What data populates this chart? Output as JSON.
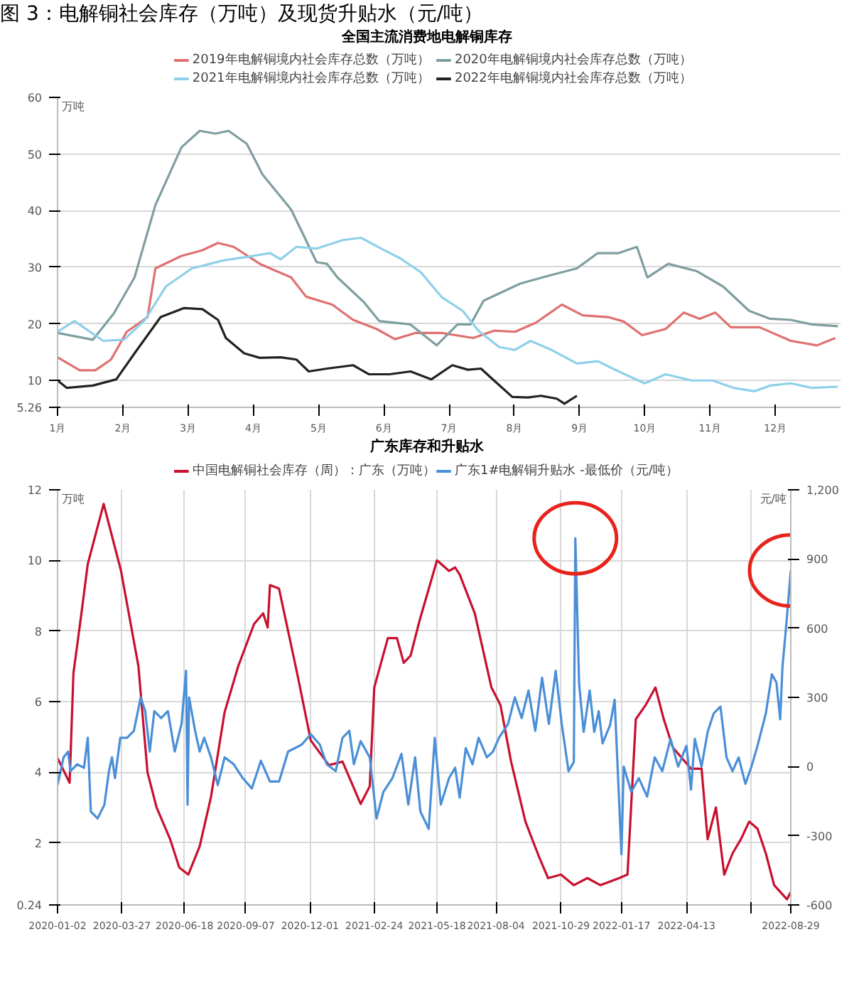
{
  "chart_data": [
    {
      "type": "line",
      "title": "图 3：电解铜社会库存（万吨）及现货升贴水（元/吨）",
      "subtitle": "全国主流消费地电解铜库存",
      "ylabel": "万吨",
      "legend": "top",
      "grid": "y",
      "line_style": "solid",
      "xlim": [
        1,
        13
      ],
      "xticks": [
        {
          "value": 1,
          "label": "1月"
        },
        {
          "value": 2,
          "label": "2月"
        },
        {
          "value": 3,
          "label": "3月"
        },
        {
          "value": 4,
          "label": "4月"
        },
        {
          "value": 5,
          "label": "5月"
        },
        {
          "value": 6,
          "label": "6月"
        },
        {
          "value": 7,
          "label": "7月"
        },
        {
          "value": 8,
          "label": "8月"
        },
        {
          "value": 9,
          "label": "9月"
        },
        {
          "value": 10,
          "label": "10月"
        },
        {
          "value": 11,
          "label": "11月"
        },
        {
          "value": 12,
          "label": "12月"
        }
      ],
      "ylim": [
        5.26,
        60
      ],
      "yticks": [
        5.26,
        10,
        20,
        30,
        40,
        50,
        60
      ],
      "series": [
        {
          "name": "2019年电解铜境内社会库存总数（万吨）",
          "color": "#e07070",
          "x": [
            1.0,
            1.34,
            1.58,
            1.82,
            2.06,
            2.38,
            2.5,
            2.9,
            3.22,
            3.46,
            3.7,
            4.1,
            4.58,
            4.81,
            5.21,
            5.53,
            5.89,
            6.17,
            6.49,
            6.89,
            7.37,
            7.69,
            8.01,
            8.33,
            8.73,
            9.05,
            9.44,
            9.68,
            9.96,
            10.32,
            10.6,
            10.84,
            11.08,
            11.32,
            11.76,
            12.24,
            12.64,
            12.92
          ],
          "values": [
            14.1,
            11.8,
            11.8,
            13.7,
            18.6,
            21.2,
            29.8,
            32.0,
            33.0,
            34.3,
            33.6,
            30.6,
            28.2,
            24.8,
            23.4,
            20.7,
            19.1,
            17.3,
            18.4,
            18.4,
            17.5,
            18.8,
            18.6,
            20.2,
            23.4,
            21.5,
            21.2,
            20.4,
            18.0,
            19.1,
            22.0,
            20.9,
            22.0,
            19.4,
            19.4,
            17.0,
            16.2,
            17.5
          ]
        },
        {
          "name": "2020年电解铜境内社会库存总数（万吨）",
          "color": "#7f9ea0",
          "x": [
            1.0,
            1.54,
            1.86,
            2.18,
            2.5,
            2.9,
            3.18,
            3.42,
            3.62,
            3.9,
            4.14,
            4.58,
            4.97,
            5.13,
            5.29,
            5.69,
            5.93,
            6.41,
            6.81,
            7.13,
            7.33,
            7.53,
            8.09,
            8.49,
            8.96,
            9.28,
            9.6,
            9.88,
            10.04,
            10.36,
            10.8,
            11.2,
            11.6,
            11.92,
            12.24,
            12.56,
            12.96
          ],
          "values": [
            18.4,
            17.2,
            21.8,
            28.2,
            41.0,
            51.2,
            54.1,
            53.6,
            54.1,
            51.8,
            46.4,
            40.2,
            30.9,
            30.6,
            28.2,
            23.9,
            20.5,
            19.9,
            16.2,
            19.9,
            19.9,
            24.1,
            27.1,
            28.4,
            29.8,
            32.5,
            32.5,
            33.6,
            28.2,
            30.6,
            29.3,
            26.6,
            22.3,
            20.9,
            20.7,
            19.9,
            19.6
          ]
        },
        {
          "name": "2021年电解铜境内社会库存总数（万吨）",
          "color": "#8fd0ea",
          "x": [
            1.0,
            1.26,
            1.7,
            2.02,
            2.34,
            2.66,
            3.06,
            3.54,
            3.94,
            4.26,
            4.42,
            4.66,
            4.97,
            5.37,
            5.65,
            6.01,
            6.25,
            6.57,
            6.89,
            7.21,
            7.45,
            7.77,
            8.01,
            8.25,
            8.57,
            8.96,
            9.28,
            9.6,
            10.0,
            10.32,
            10.72,
            11.04,
            11.36,
            11.68,
            11.92,
            12.24,
            12.56,
            12.96
          ],
          "values": [
            18.6,
            20.5,
            17.0,
            17.2,
            20.7,
            26.6,
            29.8,
            31.2,
            31.9,
            32.5,
            31.4,
            33.6,
            33.3,
            34.8,
            35.2,
            33.0,
            31.6,
            29.1,
            24.7,
            22.3,
            18.8,
            15.9,
            15.4,
            17.0,
            15.4,
            13.0,
            13.4,
            11.6,
            9.5,
            11.1,
            10.0,
            10.0,
            8.7,
            8.1,
            9.1,
            9.5,
            8.7,
            8.9
          ]
        },
        {
          "name": "2022年电解铜境内社会库存总数（万吨）",
          "color": "#222222",
          "x": [
            1.0,
            1.14,
            1.54,
            1.9,
            2.18,
            2.58,
            2.94,
            3.22,
            3.46,
            3.58,
            3.86,
            4.1,
            4.42,
            4.66,
            4.85,
            5.13,
            5.53,
            5.77,
            6.09,
            6.41,
            6.73,
            7.05,
            7.29,
            7.49,
            7.69,
            7.97,
            8.21,
            8.41,
            8.65,
            8.77,
            8.96
          ],
          "values": [
            10.0,
            8.7,
            9.1,
            10.2,
            14.8,
            21.2,
            22.8,
            22.6,
            20.7,
            17.5,
            14.8,
            14.0,
            14.1,
            13.7,
            11.6,
            12.1,
            12.7,
            11.1,
            11.1,
            11.6,
            10.2,
            12.7,
            11.9,
            12.1,
            10.0,
            7.1,
            7.0,
            7.3,
            6.8,
            5.9,
            7.3
          ]
        }
      ]
    },
    {
      "type": "line",
      "title": "广东库存和升贴水",
      "ylabel": "万吨",
      "y2label": "元/吨",
      "legend": "top",
      "grid": true,
      "line_style": "solid",
      "xlim": [
        "2020-01-02",
        "2022-08-29"
      ],
      "xticks": [
        "2020-01-02",
        "2020-03-27",
        "2020-06-18",
        "2020-09-07",
        "2020-12-01",
        "2021-02-24",
        "2021-05-18",
        "2021-08-04",
        "2021-10-29",
        "2022-01-17",
        "2022-04-13",
        {
          "value": "2022-07-08",
          "label": null
        },
        "2022-08-29"
      ],
      "ylim": [
        0.24,
        12
      ],
      "yticks": [
        0.24,
        2,
        4,
        6,
        8,
        10,
        12
      ],
      "y2lim": [
        -600,
        1200
      ],
      "y2ticks": [
        -600,
        -300,
        0,
        300,
        600,
        900,
        {
          "value": 1200,
          "label": "1,200"
        }
      ],
      "series": [
        {
          "name": "中国电解铜社会库存（周）：广东（万吨）",
          "color": "#c8102e",
          "x": [
            "2020-01-02",
            "2020-01-18",
            "2020-01-23",
            "2020-02-02",
            "2020-02-11",
            "2020-03-03",
            "2020-03-26",
            "2020-04-18",
            "2020-04-30",
            "2020-05-12",
            "2020-05-30",
            "2020-06-11",
            "2020-06-23",
            "2020-07-08",
            "2020-07-23",
            "2020-08-10",
            "2020-08-28",
            "2020-09-18",
            "2020-09-30",
            "2020-10-06",
            "2020-10-09",
            "2020-10-21",
            "2020-11-14",
            "2020-12-02",
            "2020-12-26",
            "2021-01-13",
            "2021-02-06",
            "2021-02-18",
            "2021-02-24",
            "2021-03-14",
            "2021-03-26",
            "2021-04-04",
            "2021-04-13",
            "2021-04-25",
            "2021-05-18",
            "2021-06-03",
            "2021-06-11",
            "2021-06-17",
            "2021-07-07",
            "2021-07-29",
            "2021-08-10",
            "2021-08-24",
            "2021-09-12",
            "2021-09-30",
            "2021-10-12",
            "2021-10-29",
            "2021-11-15",
            "2021-12-03",
            "2021-12-20",
            "2022-01-14",
            "2022-01-25",
            "2022-02-05",
            "2022-02-18",
            "2022-03-03",
            "2022-03-14",
            "2022-03-26",
            "2022-04-19",
            "2022-05-03",
            "2022-05-11",
            "2022-05-22",
            "2022-06-02",
            "2022-06-13",
            "2022-06-24",
            "2022-07-05",
            "2022-07-16",
            "2022-07-27",
            "2022-08-07",
            "2022-08-24",
            "2022-08-29"
          ],
          "values": [
            4.4,
            3.7,
            6.8,
            8.4,
            9.9,
            11.6,
            9.7,
            7.0,
            4.0,
            3.0,
            2.1,
            1.3,
            1.1,
            1.9,
            3.3,
            5.7,
            7.0,
            8.2,
            8.5,
            8.1,
            9.3,
            9.2,
            6.8,
            4.9,
            4.2,
            4.3,
            3.1,
            3.6,
            6.4,
            7.8,
            7.8,
            7.1,
            7.3,
            8.3,
            10.0,
            9.7,
            9.8,
            9.6,
            8.5,
            6.4,
            5.9,
            4.3,
            2.6,
            1.6,
            1.0,
            1.1,
            0.8,
            1.0,
            0.8,
            1.0,
            1.1,
            5.5,
            5.9,
            6.4,
            5.5,
            4.7,
            4.1,
            4.1,
            2.1,
            3.0,
            1.1,
            1.7,
            2.1,
            2.6,
            2.4,
            1.7,
            0.8,
            0.4,
            0.6
          ]
        },
        {
          "name": "广东1#电解铜升贴水 -最低价（元/吨）",
          "color": "#4a8fd8",
          "axis": "y2",
          "x": [
            "2020-01-02",
            "2020-01-10",
            "2020-01-16",
            "2020-01-19",
            "2020-01-28",
            "2020-02-06",
            "2020-02-11",
            "2020-02-15",
            "2020-02-24",
            "2020-03-04",
            "2020-03-10",
            "2020-03-14",
            "2020-03-18",
            "2020-03-25",
            "2020-04-03",
            "2020-04-12",
            "2020-04-21",
            "2020-04-27",
            "2020-05-03",
            "2020-05-09",
            "2020-05-18",
            "2020-05-27",
            "2020-06-05",
            "2020-06-14",
            "2020-06-20",
            "2020-06-22",
            "2020-06-24",
            "2020-07-02",
            "2020-07-08",
            "2020-07-14",
            "2020-07-23",
            "2020-08-01",
            "2020-08-10",
            "2020-08-22",
            "2020-09-03",
            "2020-09-15",
            "2020-09-27",
            "2020-10-09",
            "2020-10-21",
            "2020-11-02",
            "2020-11-20",
            "2020-12-02",
            "2020-12-14",
            "2020-12-23",
            "2021-01-04",
            "2021-01-13",
            "2021-01-22",
            "2021-01-28",
            "2021-02-06",
            "2021-02-18",
            "2021-02-27",
            "2021-03-08",
            "2021-03-20",
            "2021-04-01",
            "2021-04-10",
            "2021-04-19",
            "2021-04-26",
            "2021-05-07",
            "2021-05-15",
            "2021-05-23",
            "2021-06-03",
            "2021-06-11",
            "2021-06-17",
            "2021-06-25",
            "2021-07-04",
            "2021-07-12",
            "2021-07-23",
            "2021-07-31",
            "2021-08-08",
            "2021-08-20",
            "2021-08-29",
            "2021-09-07",
            "2021-09-16",
            "2021-09-25",
            "2021-10-04",
            "2021-10-13",
            "2021-10-22",
            "2021-10-30",
            "2021-11-08",
            "2021-11-15",
            "2021-11-17",
            "2021-11-22",
            "2021-11-28",
            "2021-12-06",
            "2021-12-12",
            "2021-12-18",
            "2021-12-23",
            "2022-01-02",
            "2022-01-08",
            "2022-01-17",
            "2022-01-20",
            "2022-01-30",
            "2022-02-09",
            "2022-02-20",
            "2022-03-02",
            "2022-03-12",
            "2022-03-23",
            "2022-04-02",
            "2022-04-13",
            "2022-04-19",
            "2022-04-24",
            "2022-05-03",
            "2022-05-11",
            "2022-05-19",
            "2022-05-28",
            "2022-06-05",
            "2022-06-13",
            "2022-06-21",
            "2022-06-30",
            "2022-07-08",
            "2022-07-16",
            "2022-07-27",
            "2022-08-04",
            "2022-08-10",
            "2022-08-15",
            "2022-08-18",
            "2022-08-24",
            "2022-08-29"
          ],
          "values": [
            -80,
            40,
            65,
            -20,
            10,
            -5,
            125,
            -195,
            -225,
            -165,
            -20,
            40,
            -50,
            125,
            125,
            155,
            300,
            240,
            65,
            240,
            210,
            240,
            65,
            185,
            415,
            -165,
            300,
            155,
            65,
            125,
            40,
            -80,
            40,
            10,
            -50,
            -95,
            25,
            -65,
            -65,
            65,
            95,
            140,
            95,
            10,
            -20,
            125,
            155,
            10,
            110,
            40,
            -225,
            -110,
            -50,
            55,
            -165,
            40,
            -195,
            -270,
            125,
            -165,
            -50,
            -5,
            -135,
            80,
            10,
            125,
            40,
            65,
            125,
            185,
            300,
            210,
            330,
            155,
            385,
            185,
            415,
            185,
            -20,
            20,
            990,
            360,
            150,
            330,
            150,
            240,
            100,
            180,
            290,
            -380,
            0,
            -110,
            -50,
            -130,
            40,
            -20,
            120,
            0,
            90,
            -100,
            120,
            0,
            150,
            230,
            260,
            40,
            -20,
            40,
            -75,
            0,
            90,
            230,
            400,
            365,
            205,
            430,
            650,
            850
          ]
        }
      ]
    }
  ]
}
